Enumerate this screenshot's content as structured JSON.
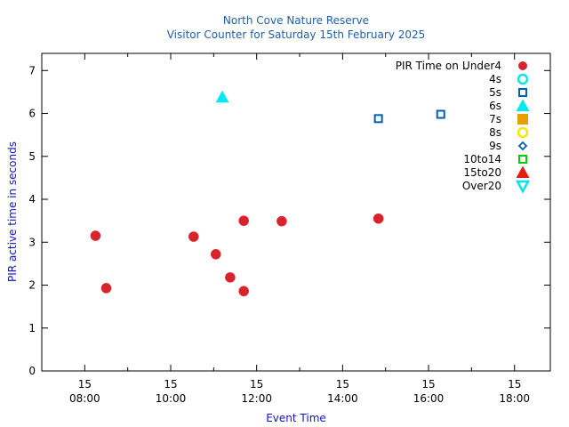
{
  "chart_data": {
    "type": "scatter",
    "title": "North Cove Nature Reserve",
    "subtitle": "Visitor Counter for Saturday 15th February 2025",
    "xlabel": "Event Time",
    "ylabel": "PIR active time in seconds",
    "xlim": [
      "07:00",
      "18:50"
    ],
    "ylim": [
      0,
      7.4
    ],
    "yticks": [
      0,
      1,
      2,
      3,
      4,
      5,
      6,
      7
    ],
    "xticks": [
      {
        "time": "08:00",
        "day": "15",
        "label": "08:00"
      },
      {
        "time": "10:00",
        "day": "15",
        "label": "10:00"
      },
      {
        "time": "12:00",
        "day": "15",
        "label": "12:00"
      },
      {
        "time": "14:00",
        "day": "15",
        "label": "14:00"
      },
      {
        "time": "16:00",
        "day": "15",
        "label": "16:00"
      },
      {
        "time": "18:00",
        "day": "15",
        "label": "18:00"
      }
    ],
    "legend_title": "PIR Time on ..",
    "legend_position": "top-right",
    "grid": false,
    "series": [
      {
        "name": "Under4",
        "marker": "filled-circle",
        "color": "#d9232b",
        "points": [
          [
            "08:15",
            3.15
          ],
          [
            "08:30",
            1.93
          ],
          [
            "10:32",
            3.13
          ],
          [
            "11:03",
            2.72
          ],
          [
            "11:23",
            2.18
          ],
          [
            "11:42",
            1.86
          ],
          [
            "11:42",
            3.5
          ],
          [
            "12:35",
            3.49
          ],
          [
            "14:50",
            3.55
          ]
        ]
      },
      {
        "name": "4s",
        "marker": "open-circle",
        "color": "#00e5ee",
        "points": []
      },
      {
        "name": "5s",
        "marker": "open-square",
        "color": "#0060ad",
        "points": [
          [
            "14:50",
            5.88
          ],
          [
            "16:17",
            5.98
          ]
        ]
      },
      {
        "name": "6s",
        "marker": "filled-triangle",
        "color": "#00eaf0",
        "points": [
          [
            "11:12",
            6.38
          ]
        ]
      },
      {
        "name": "7s",
        "marker": "filled-square",
        "color": "#e69f00",
        "points": []
      },
      {
        "name": "8s",
        "marker": "open-circle",
        "color": "#f0e800",
        "points": []
      },
      {
        "name": "9s",
        "marker": "open-diamond",
        "color": "#0060ad",
        "points": []
      },
      {
        "name": "10to14",
        "marker": "open-square",
        "color": "#00d000",
        "points": []
      },
      {
        "name": "15to20",
        "marker": "filled-triangle",
        "color": "#e51e10",
        "points": []
      },
      {
        "name": "Over20",
        "marker": "open-triangle-down",
        "color": "#00e5ee",
        "points": []
      }
    ]
  }
}
